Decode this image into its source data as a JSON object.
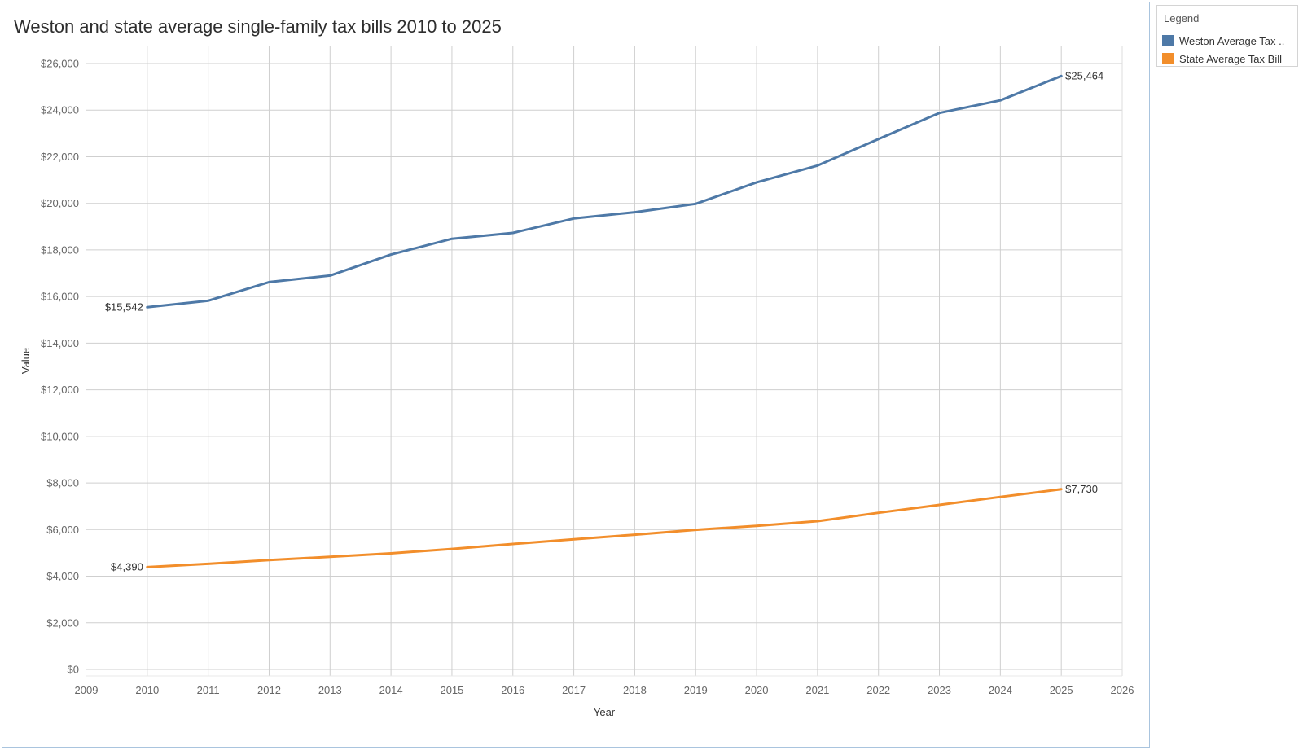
{
  "title": "Weston and state average single-family tax bills 2010 to 2025",
  "legend": {
    "title": "Legend",
    "items": [
      {
        "label": "Weston Average Tax ..",
        "color": "#4e79a7"
      },
      {
        "label": "State Average Tax Bill",
        "color": "#f28e2b"
      }
    ]
  },
  "chart_data": {
    "type": "line",
    "xlabel": "Year",
    "ylabel": "Value",
    "xlim": [
      2009,
      2026
    ],
    "ylim": [
      0,
      26000
    ],
    "xticks": [
      "2009",
      "2010",
      "2011",
      "2012",
      "2013",
      "2014",
      "2015",
      "2016",
      "2017",
      "2018",
      "2019",
      "2020",
      "2021",
      "2022",
      "2023",
      "2024",
      "2025",
      "2026"
    ],
    "yticks": [
      "$0",
      "$2,000",
      "$4,000",
      "$6,000",
      "$8,000",
      "$10,000",
      "$12,000",
      "$14,000",
      "$16,000",
      "$18,000",
      "$20,000",
      "$22,000",
      "$24,000",
      "$26,000"
    ],
    "grid": true,
    "legend_position": "top-right",
    "x": [
      2010,
      2011,
      2012,
      2013,
      2014,
      2015,
      2016,
      2017,
      2018,
      2019,
      2020,
      2021,
      2022,
      2023,
      2024,
      2025
    ],
    "series": [
      {
        "name": "Weston Average Tax ..",
        "color": "#4e79a7",
        "values": [
          15542,
          15820,
          16620,
          16900,
          17800,
          18480,
          18730,
          19350,
          19620,
          19980,
          20900,
          21620,
          22760,
          23880,
          24420,
          25464
        ],
        "start_label": "$15,542",
        "end_label": "$25,464"
      },
      {
        "name": "State Average Tax Bill",
        "color": "#f28e2b",
        "values": [
          4390,
          4530,
          4690,
          4830,
          4980,
          5170,
          5380,
          5580,
          5780,
          5990,
          6160,
          6360,
          6720,
          7060,
          7400,
          7730
        ],
        "start_label": "$4,390",
        "end_label": "$7,730"
      }
    ]
  }
}
